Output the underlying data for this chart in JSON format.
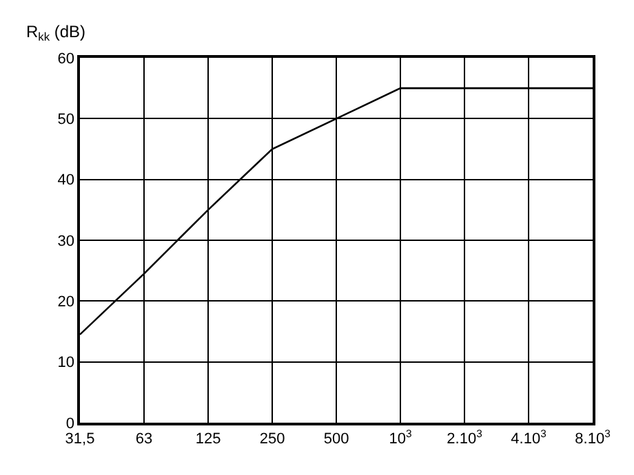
{
  "chart_data": {
    "type": "line",
    "ylabel": "R$_{kk}$ (dB)",
    "categories": [
      "31,5",
      "63",
      "125",
      "250",
      "500",
      "10$^{3}$",
      "2.10$^{3}$",
      "4.10$^{3}$",
      "8.10$^{3}$"
    ],
    "series": [
      {
        "color": "#000000",
        "values": [
          14.5,
          24.5,
          35,
          45,
          50,
          55,
          55,
          55,
          55
        ]
      }
    ],
    "ylim": [
      0,
      60
    ],
    "yticks": [
      0,
      10,
      20,
      30,
      40,
      50,
      60
    ],
    "grid": true,
    "marker": "none",
    "line_style": "solid"
  }
}
